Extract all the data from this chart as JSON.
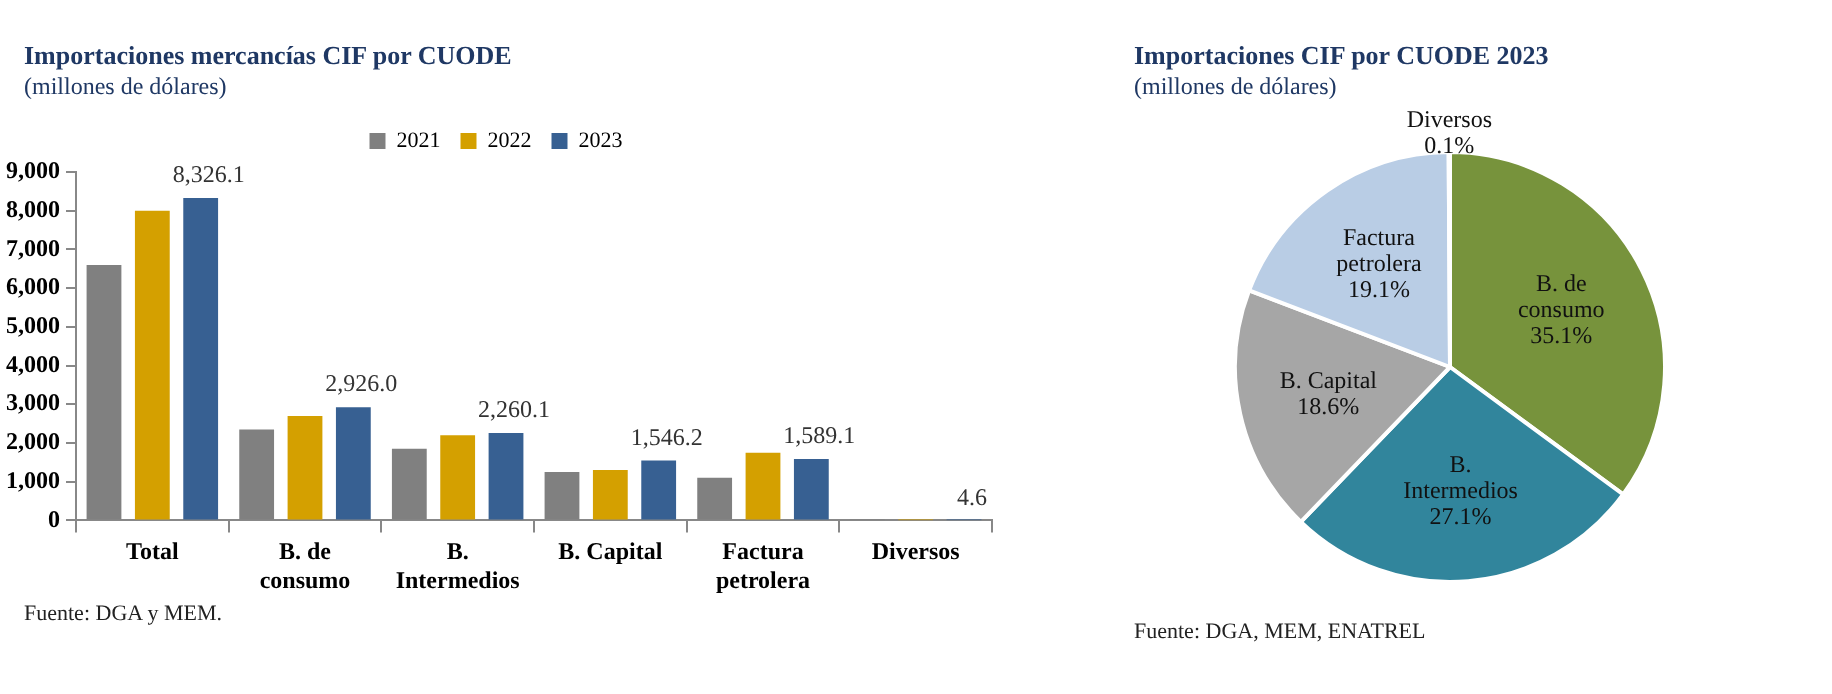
{
  "chart_data": [
    {
      "type": "bar",
      "title": "Importaciones mercancías CIF por CUODE",
      "subtitle": "(millones de dólares)",
      "categories": [
        "Total",
        "B. de consumo",
        "B. Intermedios",
        "B. Capital",
        "Factura petrolera",
        "Diversos"
      ],
      "series": [
        {
          "name": "2021",
          "color": "#808080",
          "values": [
            6600,
            2350,
            1850,
            1250,
            1100,
            5
          ]
        },
        {
          "name": "2022",
          "color": "#d4a000",
          "values": [
            8000,
            2700,
            2200,
            1300,
            1750,
            5
          ]
        },
        {
          "name": "2023",
          "color": "#376092",
          "values": [
            8326.1,
            2926.0,
            2260.1,
            1546.2,
            1589.1,
            4.6
          ],
          "value_labels": [
            "8,326.1",
            "2,926.0",
            "2,260.1",
            "1,546.2",
            "1,589.1",
            "4.6"
          ]
        }
      ],
      "ylim": [
        0,
        9000
      ],
      "yticks": [
        {
          "value": 0,
          "label": "0"
        },
        {
          "value": 1000,
          "label": "1,000"
        },
        {
          "value": 2000,
          "label": "2,000"
        },
        {
          "value": 3000,
          "label": "3,000"
        },
        {
          "value": 4000,
          "label": "4,000"
        },
        {
          "value": 5000,
          "label": "5,000"
        },
        {
          "value": 6000,
          "label": "6,000"
        },
        {
          "value": 7000,
          "label": "7,000"
        },
        {
          "value": 8000,
          "label": "8,000"
        },
        {
          "value": 9000,
          "label": "9,000"
        }
      ],
      "legend": "top",
      "annotations": [
        "Fuente: DGA y MEM."
      ]
    },
    {
      "type": "pie",
      "title": "Importaciones CIF por CUODE 2023",
      "subtitle": "(millones de dólares)",
      "categories": [
        "B. de consumo",
        "B. Intermedios",
        "B. Capital",
        "Factura petrolera",
        "Diversos"
      ],
      "values": [
        35.1,
        27.1,
        18.6,
        19.1,
        0.1
      ],
      "colors": [
        "#77933c",
        "#31859c",
        "#a6a6a6",
        "#b9cde5",
        "#8064a2"
      ],
      "value_labels": [
        "35.1%",
        "27.1%",
        "18.6%",
        "19.1%",
        "0.1%"
      ],
      "annotations": [
        "Fuente: DGA, MEM, ENATREL"
      ]
    }
  ]
}
